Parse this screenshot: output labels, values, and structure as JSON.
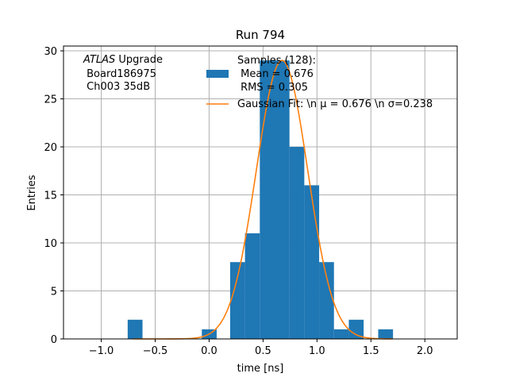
{
  "chart_data": {
    "type": "bar",
    "title": "Run 794",
    "xlabel": "time [ns]",
    "ylabel": "Entries",
    "xlim": [
      -1.35,
      2.3
    ],
    "ylim": [
      0,
      30.5
    ],
    "grid": true,
    "xticks": [
      -1.0,
      -0.5,
      0.0,
      0.5,
      1.0,
      1.5,
      2.0
    ],
    "xtick_labels": [
      "−1.0",
      "−0.5",
      "0.0",
      "0.5",
      "1.0",
      "1.5",
      "2.0"
    ],
    "yticks": [
      0,
      5,
      10,
      15,
      20,
      25,
      30
    ],
    "ytick_labels": [
      "0",
      "5",
      "10",
      "15",
      "20",
      "25",
      "30"
    ],
    "bin_width": 0.1375,
    "bins": [
      {
        "x0": -0.755,
        "count": 2
      },
      {
        "x0": -0.0675,
        "count": 1
      },
      {
        "x0": 0.195,
        "count": 8
      },
      {
        "x0": 0.3325,
        "count": 11
      },
      {
        "x0": 0.47,
        "count": 29
      },
      {
        "x0": 0.6075,
        "count": 29
      },
      {
        "x0": 0.745,
        "count": 20
      },
      {
        "x0": 0.8825,
        "count": 16
      },
      {
        "x0": 1.02,
        "count": 8
      },
      {
        "x0": 1.1575,
        "count": 1
      },
      {
        "x0": 1.295,
        "count": 2
      },
      {
        "x0": 1.5675,
        "count": 1
      }
    ],
    "fit": {
      "mean": 0.676,
      "sigma": 0.238,
      "amplitude": 29.0,
      "x_range": [
        -0.7,
        1.7
      ]
    },
    "annotation": {
      "italic": "ATLAS",
      "rest": " Upgrade",
      "line2": " Board186975",
      "line3": " Ch003 35dB"
    },
    "legend": {
      "position": "top-right",
      "entries": [
        {
          "kind": "patch",
          "lines": [
            "Samples (128):",
            " Mean = 0.676",
            " RMS = 0.305"
          ]
        },
        {
          "kind": "line",
          "label": "Gaussian Fit: \\n μ = 0.676 \\n σ=0.238"
        }
      ]
    },
    "colors": {
      "hist": "#1f77b4",
      "fit": "#ff7f0e",
      "grid": "#b0b0b0"
    }
  }
}
